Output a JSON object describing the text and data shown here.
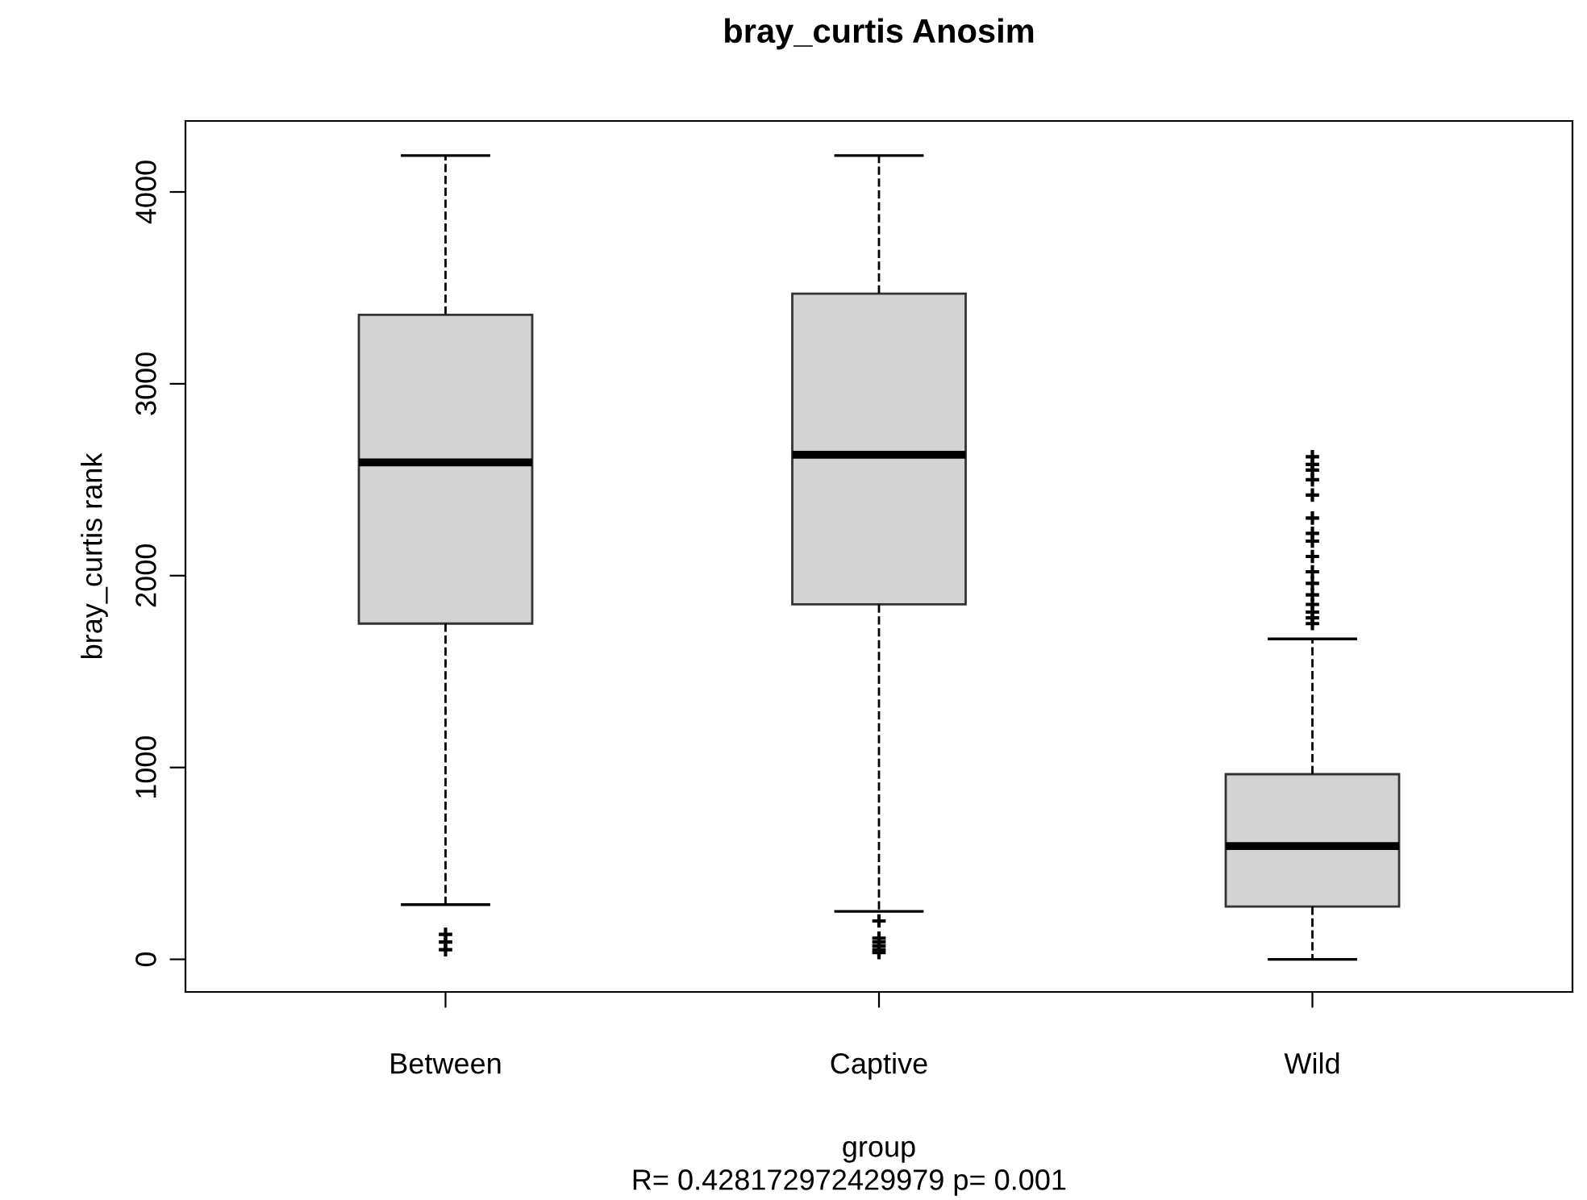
{
  "chart_data": {
    "type": "box",
    "title": "bray_curtis Anosim",
    "xlabel": "group",
    "ylabel": "bray_curtis rank",
    "annotations": [
      "R= 0.428172972429979 p= 0.001"
    ],
    "categories": [
      "Between",
      "Captive",
      "Wild"
    ],
    "color": "#d3d3d3",
    "boxes": [
      {
        "low": 285,
        "q1": 1750,
        "median": 2590,
        "q3": 3360,
        "high": 4190,
        "outliers": [
          130,
          90,
          50
        ]
      },
      {
        "low": 250,
        "q1": 1850,
        "median": 2630,
        "q3": 3470,
        "high": 4190,
        "outliers": [
          200,
          110,
          90,
          70,
          50,
          35
        ]
      },
      {
        "low": 0,
        "q1": 275,
        "median": 590,
        "q3": 965,
        "high": 1670,
        "outliers": [
          2620,
          2580,
          2550,
          2500,
          2420,
          2300,
          2220,
          2180,
          2100,
          2020,
          1960,
          1900,
          1850,
          1810,
          1780,
          1750
        ]
      }
    ],
    "ylim": [
      -170,
      4370
    ],
    "yticks": [
      0,
      1000,
      2000,
      3000,
      4000
    ],
    "marker": "cross",
    "line_style": "dashed",
    "grid": false
  }
}
